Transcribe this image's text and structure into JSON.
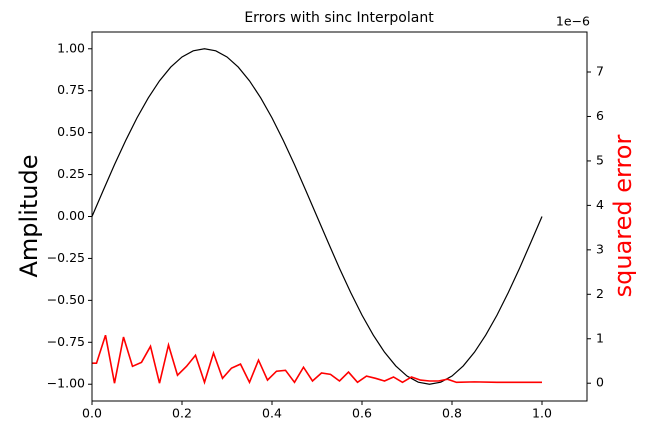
{
  "chart_data": {
    "type": "line",
    "title": "Errors with sinc Interpolant",
    "ylabel": "Amplitude",
    "y2label": "squared error",
    "y2_offset_label": "1e−6",
    "y2label_color": "#ff0000",
    "xlim": [
      0,
      1.1
    ],
    "ylim": [
      -1.1,
      1.1
    ],
    "y2lim": [
      -0.4,
      7.9
    ],
    "xticks": [
      {
        "value": 0,
        "label": "0.0"
      },
      {
        "value": 0.2,
        "label": "0.2"
      },
      {
        "value": 0.4,
        "label": "0.4"
      },
      {
        "value": 0.6,
        "label": "0.6"
      },
      {
        "value": 0.8,
        "label": "0.8"
      },
      {
        "value": 1.0,
        "label": "1.0"
      }
    ],
    "yticks": [
      {
        "value": -1,
        "label": "−1.00"
      },
      {
        "value": -0.75,
        "label": "−0.75"
      },
      {
        "value": -0.5,
        "label": "−0.50"
      },
      {
        "value": -0.25,
        "label": "−0.25"
      },
      {
        "value": 0,
        "label": "0.00"
      },
      {
        "value": 0.25,
        "label": "0.25"
      },
      {
        "value": 0.5,
        "label": "0.50"
      },
      {
        "value": 0.75,
        "label": "0.75"
      },
      {
        "value": 1,
        "label": "1.00"
      }
    ],
    "y2ticks": [
      0,
      1,
      2,
      3,
      4,
      5,
      6,
      7
    ],
    "series": [
      {
        "color": "#000000",
        "x": [
          0,
          0.025,
          0.05,
          0.075,
          0.1,
          0.125,
          0.15,
          0.175,
          0.2,
          0.225,
          0.25,
          0.275,
          0.3,
          0.325,
          0.35,
          0.375,
          0.4,
          0.425,
          0.45,
          0.475,
          0.5,
          0.525,
          0.55,
          0.575,
          0.6,
          0.625,
          0.65,
          0.675,
          0.7,
          0.725,
          0.75,
          0.775,
          0.8,
          0.825,
          0.85,
          0.875,
          0.9,
          0.925,
          0.95,
          0.975,
          1.0
        ],
        "values": [
          0,
          0.156,
          0.309,
          0.454,
          0.588,
          0.707,
          0.809,
          0.891,
          0.951,
          0.988,
          1.0,
          0.988,
          0.951,
          0.891,
          0.809,
          0.707,
          0.588,
          0.454,
          0.309,
          0.156,
          0,
          -0.156,
          -0.309,
          -0.454,
          -0.588,
          -0.707,
          -0.809,
          -0.891,
          -0.951,
          -0.988,
          -1.0,
          -0.988,
          -0.951,
          -0.891,
          -0.809,
          -0.707,
          -0.588,
          -0.454,
          -0.309,
          -0.156,
          0
        ]
      },
      {
        "color": "#ff0000",
        "axis": "y2",
        "x": [
          0,
          0.01,
          0.03,
          0.05,
          0.07,
          0.09,
          0.11,
          0.13,
          0.15,
          0.17,
          0.19,
          0.21,
          0.23,
          0.25,
          0.27,
          0.29,
          0.31,
          0.33,
          0.35,
          0.37,
          0.39,
          0.41,
          0.43,
          0.45,
          0.47,
          0.49,
          0.51,
          0.53,
          0.55,
          0.57,
          0.59,
          0.61,
          0.63,
          0.65,
          0.67,
          0.69,
          0.71,
          0.73,
          0.75,
          0.77,
          0.79,
          0.81,
          0.85,
          0.9,
          0.95,
          1.0
        ],
        "values": [
          0.45,
          0.45,
          1.08,
          0,
          1.04,
          0.38,
          0.47,
          0.83,
          0,
          0.86,
          0.18,
          0.38,
          0.63,
          0.02,
          0.68,
          0.11,
          0.34,
          0.43,
          0.02,
          0.52,
          0.07,
          0.27,
          0.29,
          0.02,
          0.36,
          0.05,
          0.23,
          0.2,
          0.05,
          0.25,
          0.02,
          0.16,
          0.11,
          0.05,
          0.14,
          0.02,
          0.14,
          0.07,
          0.05,
          0.05,
          0.09,
          0.02,
          0.03,
          0.02,
          0.02,
          0.02
        ]
      }
    ]
  }
}
